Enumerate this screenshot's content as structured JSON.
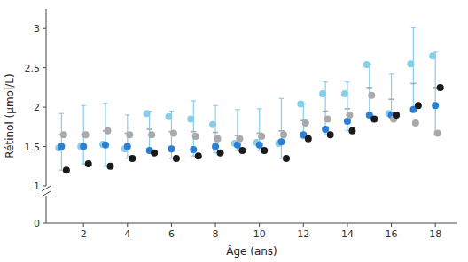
{
  "chart_data": {
    "type": "scatter",
    "xlabel": "Âge (ans)",
    "ylabel": "Rétinol (µmol/L)",
    "x": [
      1,
      2,
      3,
      4,
      5,
      6,
      7,
      8,
      9,
      10,
      11,
      12,
      13,
      14,
      15,
      16,
      17,
      18
    ],
    "series": [
      {
        "color": "#87CEEB",
        "values": [
          1.48,
          1.5,
          1.53,
          1.47,
          1.92,
          1.88,
          1.85,
          1.78,
          1.54,
          1.55,
          1.54,
          2.04,
          2.17,
          2.17,
          2.54,
          1.92,
          2.55,
          2.65
        ]
      },
      {
        "color": "#2B7FD4",
        "values": [
          1.5,
          1.5,
          1.52,
          1.5,
          1.45,
          1.47,
          1.46,
          1.5,
          1.52,
          1.52,
          1.56,
          1.65,
          1.72,
          1.82,
          1.9,
          1.9,
          1.97,
          2.02
        ]
      },
      {
        "color": "#A9A9A9",
        "values": [
          1.65,
          1.65,
          1.7,
          1.65,
          1.65,
          1.67,
          1.63,
          1.6,
          1.6,
          1.63,
          1.65,
          1.8,
          1.85,
          1.9,
          2.15,
          1.85,
          1.8,
          1.67
        ]
      },
      {
        "color": "#1a1a1a",
        "values": [
          1.2,
          1.28,
          1.25,
          1.35,
          1.42,
          1.35,
          1.38,
          1.42,
          1.45,
          1.45,
          1.35,
          1.6,
          1.65,
          1.7,
          1.85,
          1.9,
          2.02,
          2.25
        ]
      },
      {
        "type": "errorbar",
        "color": "#87CEEB",
        "upper": [
          1.92,
          2.02,
          2.05,
          1.9,
          1.95,
          1.95,
          2.08,
          2.02,
          1.97,
          1.98,
          2.11,
          2.04,
          2.32,
          2.32,
          2.55,
          2.42,
          3.01,
          2.7
        ],
        "lower": [
          1.2,
          1.28,
          1.25,
          1.35,
          1.42,
          1.35,
          1.38,
          1.42,
          1.45,
          1.45,
          1.35,
          1.6,
          1.65,
          1.7,
          1.85,
          1.9,
          1.95,
          1.65
        ]
      },
      {
        "type": "tick",
        "color": "#A9A9A9",
        "values": [
          1.65,
          1.65,
          1.7,
          1.67,
          1.72,
          1.69,
          1.69,
          1.68,
          1.64,
          1.67,
          1.7,
          1.83,
          1.95,
          1.98,
          2.25,
          2.1,
          2.3,
          2.25
        ]
      }
    ],
    "xlim": [
      0.3,
      19.0
    ],
    "xticks": [
      2,
      4,
      6,
      8,
      10,
      12,
      14,
      16,
      18
    ],
    "ylim": [
      [
        0,
        0.35
      ],
      [
        1.0,
        3.25
      ]
    ],
    "yticks": [
      0,
      1,
      1.5,
      2,
      2.5,
      3
    ],
    "grid": false
  }
}
